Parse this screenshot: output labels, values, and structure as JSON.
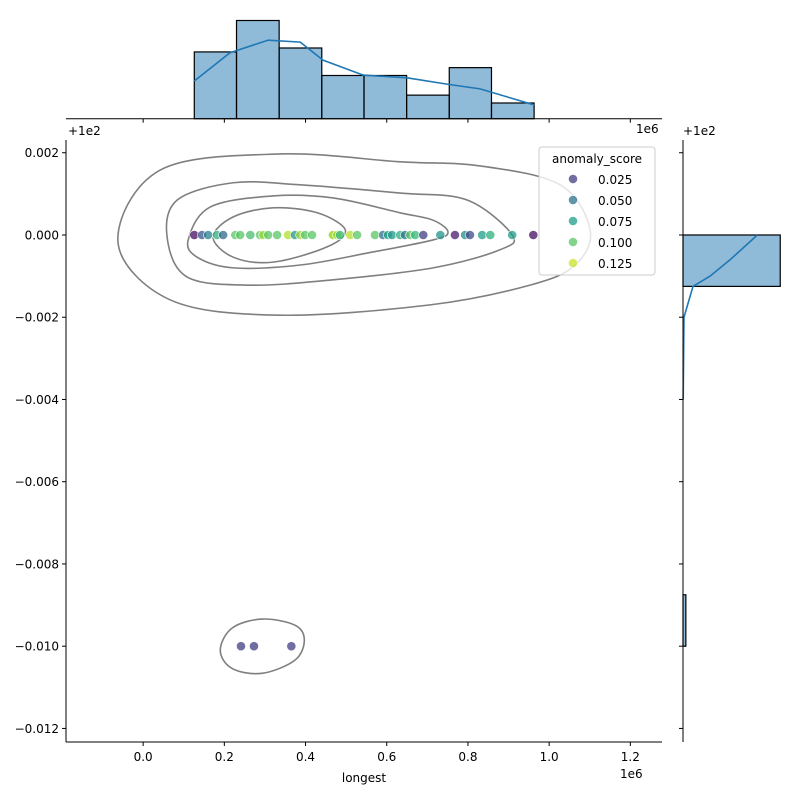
{
  "chart_data": {
    "type": "scatter",
    "kind": "jointplot",
    "xlabel": "longest",
    "ylabel": "",
    "x_offset_text": "1e6",
    "y_offset_text": "+1e2",
    "xlim": [
      -0.19,
      1.278
    ],
    "ylim": [
      -0.01233,
      0.00231
    ],
    "xticks": [
      0.0,
      0.2,
      0.4,
      0.6,
      0.8,
      1.0,
      1.2
    ],
    "xtick_labels": [
      "0.0",
      "0.2",
      "0.4",
      "0.6",
      "0.8",
      "1.0",
      "1.2"
    ],
    "yticks": [
      0.002,
      0.0,
      -0.002,
      -0.004,
      -0.006,
      -0.008,
      -0.01,
      -0.012
    ],
    "ytick_labels": [
      "0.002",
      "0.000",
      "−0.002",
      "−0.004",
      "−0.006",
      "−0.008",
      "−0.010",
      "−0.012"
    ],
    "grid": false,
    "hue": {
      "name": "anomaly_score",
      "colormap": "viridis",
      "range": [
        0,
        0.135
      ],
      "legend_values": [
        0.025,
        0.05,
        0.075,
        0.1,
        0.125
      ],
      "legend_labels": [
        "0.025",
        "0.050",
        "0.075",
        "0.100",
        "0.125"
      ],
      "legend_placement": "top-right"
    },
    "points": [
      {
        "x": 0.126,
        "y": 0,
        "score": 0.005
      },
      {
        "x": 0.145,
        "y": 0,
        "score": 0.035
      },
      {
        "x": 0.16,
        "y": 0,
        "score": 0.06
      },
      {
        "x": 0.182,
        "y": 0,
        "score": 0.085
      },
      {
        "x": 0.197,
        "y": 0,
        "score": 0.045
      },
      {
        "x": 0.227,
        "y": 0,
        "score": 0.1
      },
      {
        "x": 0.239,
        "y": 0,
        "score": 0.1
      },
      {
        "x": 0.264,
        "y": 0,
        "score": 0.095
      },
      {
        "x": 0.288,
        "y": 0,
        "score": 0.1
      },
      {
        "x": 0.296,
        "y": 0,
        "score": 0.115
      },
      {
        "x": 0.308,
        "y": 0,
        "score": 0.1
      },
      {
        "x": 0.33,
        "y": 0,
        "score": 0.1
      },
      {
        "x": 0.357,
        "y": 0,
        "score": 0.12
      },
      {
        "x": 0.374,
        "y": 0,
        "score": 0.07
      },
      {
        "x": 0.387,
        "y": 0,
        "score": 0.115
      },
      {
        "x": 0.399,
        "y": 0,
        "score": 0.1
      },
      {
        "x": 0.416,
        "y": 0,
        "score": 0.1
      },
      {
        "x": 0.466,
        "y": 0,
        "score": 0.105
      },
      {
        "x": 0.468,
        "y": 0,
        "score": 0.12
      },
      {
        "x": 0.478,
        "y": 0,
        "score": 0.115
      },
      {
        "x": 0.485,
        "y": 0,
        "score": 0.09
      },
      {
        "x": 0.51,
        "y": 0,
        "score": 0.12
      },
      {
        "x": 0.527,
        "y": 0,
        "score": 0.1
      },
      {
        "x": 0.571,
        "y": 0,
        "score": 0.1
      },
      {
        "x": 0.591,
        "y": 0,
        "score": 0.05
      },
      {
        "x": 0.603,
        "y": 0,
        "score": 0.08
      },
      {
        "x": 0.613,
        "y": 0,
        "score": 0.07
      },
      {
        "x": 0.633,
        "y": 0,
        "score": 0.085
      },
      {
        "x": 0.645,
        "y": 0,
        "score": 0.05
      },
      {
        "x": 0.658,
        "y": 0,
        "score": 0.1
      },
      {
        "x": 0.67,
        "y": 0,
        "score": 0.09
      },
      {
        "x": 0.69,
        "y": 0,
        "score": 0.025
      },
      {
        "x": 0.732,
        "y": 0,
        "score": 0.07
      },
      {
        "x": 0.768,
        "y": 0,
        "score": 0.01
      },
      {
        "x": 0.793,
        "y": 0,
        "score": 0.065
      },
      {
        "x": 0.805,
        "y": 0,
        "score": 0.03
      },
      {
        "x": 0.835,
        "y": 0,
        "score": 0.075
      },
      {
        "x": 0.855,
        "y": 0,
        "score": 0.085
      },
      {
        "x": 0.909,
        "y": 0,
        "score": 0.075
      },
      {
        "x": 0.961,
        "y": 0,
        "score": 0.005
      },
      {
        "x": 0.241,
        "y": -0.01,
        "score": 0.025
      },
      {
        "x": 0.273,
        "y": -0.01,
        "score": 0.025
      },
      {
        "x": 0.365,
        "y": -0.01,
        "score": 0.025
      }
    ],
    "kde_contours": [
      [
        [
          -0.062,
          -0.00017
        ],
        [
          0.042,
          0.00158
        ],
        [
          0.337,
          0.00197
        ],
        [
          0.633,
          0.00178
        ],
        [
          0.83,
          0.00168
        ],
        [
          1.027,
          0.00122
        ],
        [
          1.101,
          0.00012
        ],
        [
          1.064,
          -0.00073
        ],
        [
          0.953,
          -0.00122
        ],
        [
          0.707,
          -0.0017
        ],
        [
          0.337,
          -0.00195
        ],
        [
          0.067,
          -0.00158
        ]
      ],
      [
        [
          0.059,
          -5e-05
        ],
        [
          0.084,
          0.00085
        ],
        [
          0.222,
          0.00127
        ],
        [
          0.387,
          0.00122
        ],
        [
          0.633,
          0.00102
        ],
        [
          0.798,
          0.00085
        ],
        [
          0.909,
          0.0
        ],
        [
          0.879,
          -0.00036
        ],
        [
          0.714,
          -0.0008
        ],
        [
          0.468,
          -0.00109
        ],
        [
          0.264,
          -0.00122
        ],
        [
          0.108,
          -0.00102
        ]
      ],
      [
        [
          0.111,
          -0.00012
        ],
        [
          0.165,
          0.00068
        ],
        [
          0.32,
          0.00095
        ],
        [
          0.468,
          0.0009
        ],
        [
          0.633,
          0.00054
        ],
        [
          0.714,
          0.00036
        ],
        [
          0.751,
          7e-05
        ],
        [
          0.714,
          -0.00012
        ],
        [
          0.552,
          -0.00044
        ],
        [
          0.387,
          -0.00073
        ],
        [
          0.222,
          -0.0008
        ],
        [
          0.133,
          -0.00054
        ]
      ],
      [
        [
          0.172,
          -5e-05
        ],
        [
          0.222,
          0.00044
        ],
        [
          0.32,
          0.00066
        ],
        [
          0.429,
          0.00054
        ],
        [
          0.498,
          0.00012
        ],
        [
          0.453,
          -0.00029
        ],
        [
          0.32,
          -0.00066
        ],
        [
          0.222,
          -0.00054
        ]
      ],
      [
        [
          0.19,
          -0.0101
        ],
        [
          0.219,
          -0.00956
        ],
        [
          0.293,
          -0.00934
        ],
        [
          0.374,
          -0.00949
        ],
        [
          0.397,
          -0.00985
        ],
        [
          0.374,
          -0.01034
        ],
        [
          0.293,
          -0.01066
        ],
        [
          0.219,
          -0.01054
        ]
      ]
    ],
    "marginal_x": {
      "type": "histogram",
      "bin_edges": [
        0.126,
        0.23,
        0.335,
        0.44,
        0.544,
        0.649,
        0.754,
        0.858,
        0.963
      ],
      "counts": [
        17,
        25,
        18,
        11,
        11,
        6,
        13,
        4
      ],
      "ylim": [
        0,
        26.4
      ],
      "kde": [
        [
          0.126,
          9.6
        ],
        [
          0.214,
          16.8
        ],
        [
          0.308,
          20.0
        ],
        [
          0.387,
          19.5
        ],
        [
          0.443,
          14.9
        ],
        [
          0.542,
          11.1
        ],
        [
          0.65,
          10.4
        ],
        [
          0.748,
          8.8
        ],
        [
          0.83,
          7.6
        ],
        [
          0.963,
          3.5
        ]
      ],
      "color": "#1f77b4"
    },
    "marginal_y": {
      "type": "histogram",
      "bin_edges": [
        -0.01,
        -0.00875,
        -0.0075,
        -0.00625,
        -0.005,
        -0.00375,
        -0.0025,
        -0.00125,
        0.0
      ],
      "counts": [
        3,
        0,
        0,
        0,
        0,
        0,
        0,
        102
      ],
      "xlim": [
        0,
        107
      ],
      "kde": [
        [
          0.0,
          78
        ],
        [
          -0.0006,
          49.5
        ],
        [
          -0.001,
          28.4
        ],
        [
          -0.00125,
          10.5
        ],
        [
          -0.002,
          1
        ],
        [
          -0.004,
          0.2
        ]
      ],
      "color": "#1f77b4"
    }
  }
}
